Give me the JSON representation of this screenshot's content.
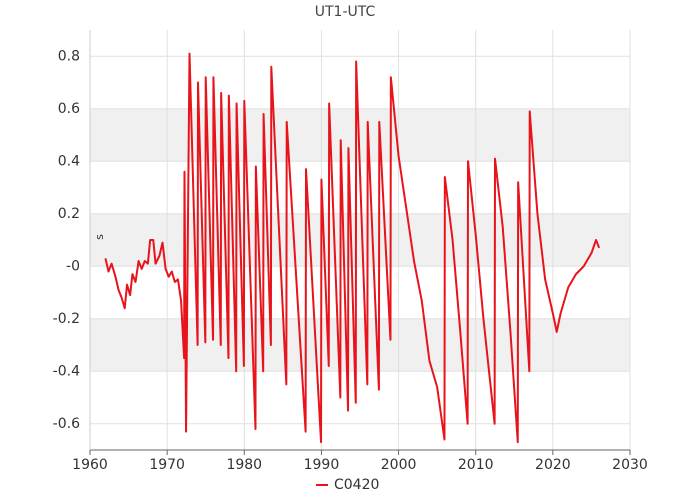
{
  "chart_data": {
    "type": "line",
    "title": "UT1-UTC",
    "ylabel": "s",
    "xlim": [
      1960,
      2030
    ],
    "xticks": [
      1960,
      1970,
      1980,
      1990,
      2000,
      2010,
      2020,
      2030
    ],
    "ylim": [
      -0.7,
      0.9
    ],
    "yticks": [
      -0.6,
      -0.4,
      -0.2,
      {
        "value": 0,
        "label": "-0"
      },
      0.2,
      0.4,
      0.6,
      0.8
    ],
    "grid": true,
    "legend": "bottom",
    "x": [
      1962.0,
      1962.4,
      1962.8,
      1963.3,
      1963.7,
      1964.1,
      1964.5,
      1964.8,
      1965.2,
      1965.5,
      1965.9,
      1966.3,
      1966.7,
      1967.1,
      1967.5,
      1967.8,
      1968.2,
      1968.5,
      1969.0,
      1969.4,
      1969.8,
      1970.2,
      1970.6,
      1971.0,
      1971.4,
      1971.8,
      1972.2,
      1972.25,
      1972.45,
      1972.9,
      1973.95,
      1974.0,
      1974.95,
      1975.0,
      1975.95,
      1976.0,
      1976.95,
      1977.0,
      1977.95,
      1978.0,
      1978.95,
      1979.0,
      1979.95,
      1980.0,
      1981.45,
      1981.5,
      1982.45,
      1982.5,
      1983.45,
      1983.5,
      1985.45,
      1985.5,
      1987.95,
      1988.0,
      1989.95,
      1990.0,
      1990.95,
      1991.0,
      1992.45,
      1992.5,
      1993.45,
      1993.5,
      1994.45,
      1994.5,
      1995.95,
      1996.0,
      1997.45,
      1997.5,
      1998.95,
      1999.0,
      2000.0,
      2001.0,
      2002.0,
      2003.0,
      2004.0,
      2005.0,
      2005.95,
      2006.0,
      2007.0,
      2008.0,
      2008.95,
      2009.0,
      2010.0,
      2011.0,
      2012.45,
      2012.5,
      2013.5,
      2014.5,
      2015.45,
      2015.5,
      2016.95,
      2017.0,
      2018.0,
      2019.0,
      2020.0,
      2020.5,
      2021.0,
      2022.0,
      2023.0,
      2024.0,
      2025.0,
      2025.6,
      2026.0
    ],
    "series": [
      {
        "name": "C0420",
        "color": "#e8141c",
        "values": [
          0.03,
          -0.02,
          0.01,
          -0.04,
          -0.09,
          -0.12,
          -0.16,
          -0.07,
          -0.11,
          -0.03,
          -0.06,
          0.02,
          -0.01,
          0.02,
          0.01,
          0.1,
          0.1,
          0.01,
          0.04,
          0.09,
          -0.01,
          -0.04,
          -0.02,
          -0.06,
          -0.05,
          -0.13,
          -0.35,
          0.36,
          -0.63,
          0.81,
          -0.3,
          0.7,
          -0.29,
          0.72,
          -0.28,
          0.72,
          -0.3,
          0.66,
          -0.35,
          0.65,
          -0.4,
          0.62,
          -0.38,
          0.63,
          -0.62,
          0.38,
          -0.4,
          0.58,
          -0.3,
          0.76,
          -0.45,
          0.55,
          -0.63,
          0.37,
          -0.67,
          0.33,
          -0.38,
          0.62,
          -0.5,
          0.48,
          -0.55,
          0.45,
          -0.52,
          0.78,
          -0.45,
          0.55,
          -0.47,
          0.55,
          -0.28,
          0.72,
          0.42,
          0.22,
          0.02,
          -0.13,
          -0.36,
          -0.46,
          -0.66,
          0.34,
          0.1,
          -0.25,
          -0.6,
          0.4,
          0.12,
          -0.2,
          -0.6,
          0.41,
          0.15,
          -0.25,
          -0.67,
          0.32,
          -0.4,
          0.59,
          0.2,
          -0.05,
          -0.18,
          -0.25,
          -0.18,
          -0.08,
          -0.03,
          0.0,
          0.05,
          0.1,
          0.07
        ]
      }
    ]
  }
}
